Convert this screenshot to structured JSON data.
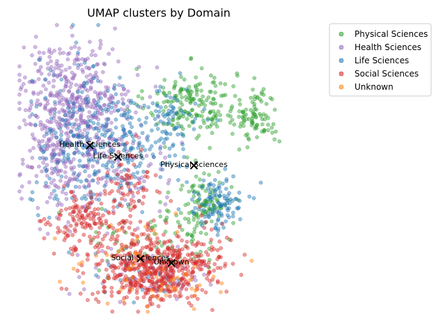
{
  "chart_data": {
    "type": "scatter",
    "title": "UMAP clusters by Domain",
    "xlabel": "",
    "ylabel": "",
    "axes_visible": false,
    "xlim": [
      0,
      100
    ],
    "ylim": [
      0,
      100
    ],
    "legend_position": "upper-right-outside",
    "series": [
      {
        "name": "Physical Sciences",
        "color": "#2ca02c",
        "centroid": [
          62.0,
          51.0
        ],
        "clusters": [
          {
            "cx": 61,
            "cy": 73,
            "sx": 8,
            "sy": 6,
            "n": 180
          },
          {
            "cx": 84,
            "cy": 68,
            "sx": 4,
            "sy": 5,
            "n": 90
          },
          {
            "cx": 65,
            "cy": 37,
            "sx": 5,
            "sy": 6,
            "n": 110
          },
          {
            "cx": 50,
            "cy": 25,
            "sx": 14,
            "sy": 6,
            "n": 60
          }
        ]
      },
      {
        "name": "Health Sciences",
        "color": "#9467bd",
        "centroid": [
          25.0,
          58.0
        ],
        "clusters": [
          {
            "cx": 20,
            "cy": 76,
            "sx": 10,
            "sy": 9,
            "n": 380
          },
          {
            "cx": 14,
            "cy": 54,
            "sx": 7,
            "sy": 9,
            "n": 180
          },
          {
            "cx": 32,
            "cy": 50,
            "sx": 10,
            "sy": 10,
            "n": 140
          },
          {
            "cx": 45,
            "cy": 13,
            "sx": 11,
            "sy": 4,
            "n": 60
          }
        ]
      },
      {
        "name": "Life Sciences",
        "color": "#1f77b4",
        "centroid": [
          35.0,
          54.0
        ],
        "clusters": [
          {
            "cx": 22,
            "cy": 60,
            "sx": 9,
            "sy": 13,
            "n": 200
          },
          {
            "cx": 38,
            "cy": 58,
            "sx": 7,
            "sy": 9,
            "n": 110
          },
          {
            "cx": 52,
            "cy": 64,
            "sx": 6,
            "sy": 7,
            "n": 90
          },
          {
            "cx": 70,
            "cy": 38,
            "sx": 5,
            "sy": 5,
            "n": 110
          },
          {
            "cx": 44,
            "cy": 12,
            "sx": 10,
            "sy": 4,
            "n": 30
          }
        ]
      },
      {
        "name": "Social Sciences",
        "color": "#d62728",
        "centroid": [
          43.0,
          18.5
        ],
        "clusters": [
          {
            "cx": 47,
            "cy": 14,
            "sx": 10,
            "sy": 6,
            "n": 480
          },
          {
            "cx": 25,
            "cy": 31,
            "sx": 7,
            "sy": 5,
            "n": 150
          },
          {
            "cx": 38,
            "cy": 42,
            "sx": 5,
            "sy": 8,
            "n": 80
          },
          {
            "cx": 67,
            "cy": 22,
            "sx": 5,
            "sy": 6,
            "n": 60
          }
        ]
      },
      {
        "name": "Unknown",
        "color": "#ff7f0e",
        "centroid": [
          54.0,
          17.0
        ],
        "clusters": [
          {
            "cx": 54,
            "cy": 10,
            "sx": 12,
            "sy": 5,
            "n": 50
          },
          {
            "cx": 38,
            "cy": 22,
            "sx": 8,
            "sy": 6,
            "n": 25
          }
        ]
      }
    ],
    "centroid_labels": [
      {
        "text": "Health Sciences",
        "x": 25.0,
        "y": 58.0
      },
      {
        "text": "Life Sciences",
        "x": 35.0,
        "y": 54.0
      },
      {
        "text": "Physical Sciences",
        "x": 62.0,
        "y": 51.0
      },
      {
        "text": "Social Sciences",
        "x": 43.0,
        "y": 18.5
      },
      {
        "text": "Unknown",
        "x": 54.0,
        "y": 17.0
      }
    ],
    "legend": [
      "Physical Sciences",
      "Health Sciences",
      "Life Sciences",
      "Social Sciences",
      "Unknown"
    ]
  }
}
